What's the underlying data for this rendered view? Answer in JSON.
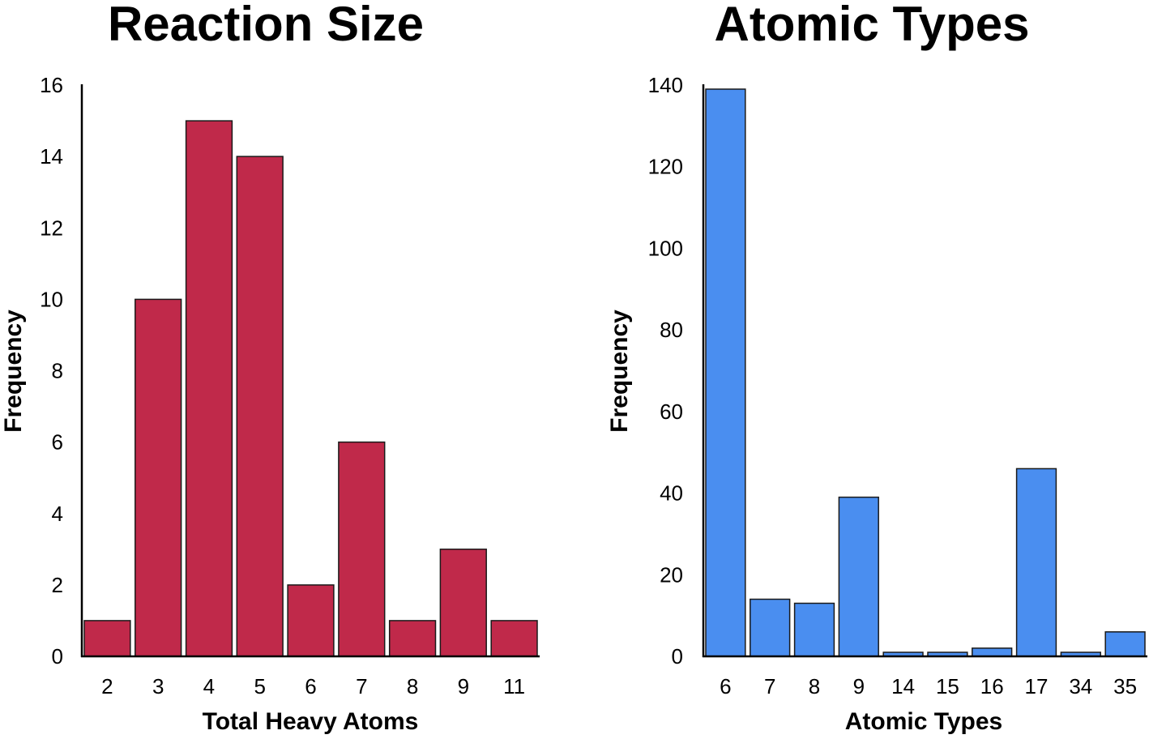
{
  "chart_data": [
    {
      "type": "bar",
      "title": "Reaction Size",
      "xlabel": "Total Heavy Atoms",
      "ylabel": "Frequency",
      "categories": [
        "2",
        "3",
        "4",
        "5",
        "6",
        "7",
        "8",
        "9",
        "11"
      ],
      "values": [
        1,
        10,
        15,
        14,
        2,
        6,
        1,
        3,
        1
      ],
      "yticks": [
        "0",
        "2",
        "4",
        "6",
        "8",
        "10",
        "12",
        "14",
        "16"
      ],
      "ylim": [
        0,
        16
      ],
      "grid": false,
      "legend": "none",
      "bar_color": "#c0294a"
    },
    {
      "type": "bar",
      "title": "Atomic Types",
      "xlabel": "Atomic Types",
      "ylabel": "Frequency",
      "categories": [
        "6",
        "7",
        "8",
        "9",
        "14",
        "15",
        "16",
        "17",
        "34",
        "35"
      ],
      "values": [
        139,
        14,
        13,
        39,
        1,
        1,
        2,
        46,
        1,
        6
      ],
      "yticks": [
        "0",
        "20",
        "40",
        "60",
        "80",
        "100",
        "120",
        "140"
      ],
      "ylim": [
        0,
        140
      ],
      "grid": false,
      "legend": "none",
      "bar_color": "#4a8ef0"
    }
  ]
}
